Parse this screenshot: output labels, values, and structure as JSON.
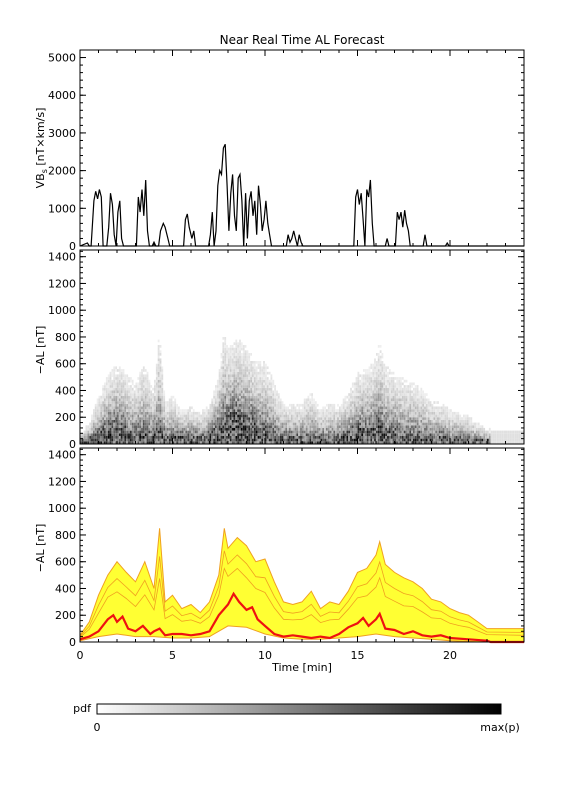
{
  "title": "Near Real Time AL Forecast",
  "chart_data": [
    {
      "type": "line",
      "panel": "vbs",
      "ylabel": "VB",
      "ylabel_sub": "s",
      "ylabel_unit": " [nT×km/s]",
      "xlim": [
        0,
        24
      ],
      "ylim": [
        0,
        5200
      ],
      "yticks": [
        0,
        1000,
        2000,
        3000,
        4000,
        5000
      ],
      "series": [
        {
          "color": "#000000",
          "points": [
            [
              0,
              0
            ],
            [
              0.4,
              80
            ],
            [
              0.5,
              0
            ],
            [
              0.6,
              0
            ],
            [
              0.75,
              1200
            ],
            [
              0.85,
              1450
            ],
            [
              0.95,
              1250
            ],
            [
              1.05,
              1500
            ],
            [
              1.15,
              1300
            ],
            [
              1.25,
              0
            ],
            [
              1.45,
              0
            ],
            [
              1.55,
              500
            ],
            [
              1.65,
              1400
            ],
            [
              1.75,
              1100
            ],
            [
              1.85,
              300
            ],
            [
              1.95,
              0
            ],
            [
              2.05,
              900
            ],
            [
              2.15,
              1200
            ],
            [
              2.25,
              200
            ],
            [
              2.35,
              0
            ],
            [
              3.05,
              0
            ],
            [
              3.15,
              1300
            ],
            [
              3.25,
              900
            ],
            [
              3.35,
              1500
            ],
            [
              3.45,
              800
            ],
            [
              3.55,
              1750
            ],
            [
              3.65,
              400
            ],
            [
              3.75,
              0
            ],
            [
              3.9,
              0
            ],
            [
              4.0,
              100
            ],
            [
              4.1,
              0
            ],
            [
              4.25,
              0
            ],
            [
              4.35,
              400
            ],
            [
              4.5,
              600
            ],
            [
              4.6,
              500
            ],
            [
              4.75,
              200
            ],
            [
              4.85,
              0
            ],
            [
              5.6,
              0
            ],
            [
              5.7,
              700
            ],
            [
              5.8,
              850
            ],
            [
              5.9,
              500
            ],
            [
              6.05,
              200
            ],
            [
              6.15,
              400
            ],
            [
              6.25,
              0
            ],
            [
              6.95,
              0
            ],
            [
              7.05,
              300
            ],
            [
              7.15,
              900
            ],
            [
              7.25,
              0
            ],
            [
              7.35,
              400
            ],
            [
              7.45,
              1600
            ],
            [
              7.55,
              2000
            ],
            [
              7.65,
              1900
            ],
            [
              7.75,
              2600
            ],
            [
              7.85,
              2700
            ],
            [
              7.95,
              1600
            ],
            [
              8.05,
              400
            ],
            [
              8.15,
              1400
            ],
            [
              8.25,
              1900
            ],
            [
              8.35,
              800
            ],
            [
              8.45,
              400
            ],
            [
              8.55,
              1800
            ],
            [
              8.65,
              1900
            ],
            [
              8.75,
              1200
            ],
            [
              8.85,
              0
            ],
            [
              8.95,
              1400
            ],
            [
              9.05,
              200
            ],
            [
              9.15,
              1200
            ],
            [
              9.25,
              1450
            ],
            [
              9.35,
              800
            ],
            [
              9.45,
              1200
            ],
            [
              9.55,
              300
            ],
            [
              9.65,
              1600
            ],
            [
              9.75,
              1100
            ],
            [
              9.85,
              400
            ],
            [
              9.95,
              700
            ],
            [
              10.05,
              1200
            ],
            [
              10.15,
              600
            ],
            [
              10.25,
              300
            ],
            [
              10.35,
              0
            ],
            [
              11.15,
              0
            ],
            [
              11.25,
              300
            ],
            [
              11.35,
              100
            ],
            [
              11.45,
              200
            ],
            [
              11.55,
              400
            ],
            [
              11.65,
              200
            ],
            [
              11.75,
              0
            ],
            [
              11.85,
              300
            ],
            [
              11.95,
              100
            ],
            [
              12.05,
              0
            ],
            [
              14.8,
              0
            ],
            [
              14.9,
              1300
            ],
            [
              15.0,
              1500
            ],
            [
              15.1,
              1100
            ],
            [
              15.2,
              1400
            ],
            [
              15.3,
              700
            ],
            [
              15.4,
              0
            ],
            [
              15.5,
              1500
            ],
            [
              15.6,
              1300
            ],
            [
              15.7,
              1750
            ],
            [
              15.8,
              600
            ],
            [
              15.9,
              0
            ],
            [
              16.5,
              0
            ],
            [
              16.6,
              200
            ],
            [
              16.7,
              0
            ],
            [
              17.05,
              0
            ],
            [
              17.15,
              900
            ],
            [
              17.25,
              700
            ],
            [
              17.35,
              900
            ],
            [
              17.45,
              500
            ],
            [
              17.55,
              950
            ],
            [
              17.65,
              600
            ],
            [
              17.75,
              400
            ],
            [
              17.85,
              0
            ],
            [
              18.55,
              0
            ],
            [
              18.65,
              300
            ],
            [
              18.75,
              0
            ],
            [
              19.75,
              0
            ],
            [
              19.85,
              80
            ],
            [
              19.95,
              0
            ],
            [
              20.15,
              0
            ],
            [
              24,
              0
            ]
          ]
        }
      ]
    },
    {
      "type": "heatmap",
      "panel": "pdf",
      "ylabel": "−AL [nT]",
      "xlim": [
        0,
        24
      ],
      "ylim": [
        0,
        1450
      ],
      "yticks": [
        0,
        200,
        400,
        600,
        800,
        1000,
        1200,
        1400
      ]
    },
    {
      "type": "area",
      "panel": "forecast",
      "xlabel": "Time [min]",
      "ylabel": "−AL [nT]",
      "xlim": [
        0,
        24
      ],
      "ylim": [
        0,
        1450
      ],
      "xticks": [
        0,
        5,
        10,
        15,
        20
      ],
      "yticks": [
        0,
        200,
        400,
        600,
        800,
        1000,
        1200,
        1400
      ],
      "colors": {
        "band": "#ffff33",
        "band_edge": "#f0a020",
        "median": "#ee1111"
      },
      "series": [
        {
          "name": "",
          "role": "upper",
          "points": [
            [
              0,
              50
            ],
            [
              0.5,
              150
            ],
            [
              1,
              350
            ],
            [
              1.5,
              500
            ],
            [
              2,
              600
            ],
            [
              2.5,
              520
            ],
            [
              3,
              450
            ],
            [
              3.5,
              600
            ],
            [
              4,
              400
            ],
            [
              4.3,
              850
            ],
            [
              4.6,
              300
            ],
            [
              5,
              350
            ],
            [
              5.5,
              250
            ],
            [
              6,
              280
            ],
            [
              6.5,
              220
            ],
            [
              7,
              300
            ],
            [
              7.5,
              500
            ],
            [
              7.8,
              850
            ],
            [
              8,
              700
            ],
            [
              8.5,
              780
            ],
            [
              9,
              720
            ],
            [
              9.5,
              600
            ],
            [
              10,
              620
            ],
            [
              10.5,
              450
            ],
            [
              11,
              300
            ],
            [
              11.5,
              280
            ],
            [
              12,
              300
            ],
            [
              12.5,
              380
            ],
            [
              13,
              250
            ],
            [
              13.5,
              300
            ],
            [
              14,
              280
            ],
            [
              14.5,
              380
            ],
            [
              15,
              520
            ],
            [
              15.5,
              550
            ],
            [
              16,
              650
            ],
            [
              16.2,
              750
            ],
            [
              16.5,
              580
            ],
            [
              17,
              520
            ],
            [
              17.5,
              480
            ],
            [
              18,
              450
            ],
            [
              18.5,
              400
            ],
            [
              19,
              320
            ],
            [
              19.5,
              300
            ],
            [
              20,
              250
            ],
            [
              20.5,
              220
            ],
            [
              21,
              200
            ],
            [
              21.5,
              150
            ],
            [
              22,
              100
            ],
            [
              24,
              100
            ]
          ]
        },
        {
          "name": "",
          "role": "lower",
          "points": [
            [
              0,
              10
            ],
            [
              1,
              40
            ],
            [
              2,
              60
            ],
            [
              3,
              40
            ],
            [
              4,
              40
            ],
            [
              5,
              30
            ],
            [
              6,
              30
            ],
            [
              7,
              40
            ],
            [
              8,
              120
            ],
            [
              9,
              110
            ],
            [
              10,
              60
            ],
            [
              11,
              30
            ],
            [
              12,
              20
            ],
            [
              13,
              20
            ],
            [
              14,
              30
            ],
            [
              15,
              40
            ],
            [
              16,
              60
            ],
            [
              17,
              40
            ],
            [
              18,
              30
            ],
            [
              19,
              20
            ],
            [
              20,
              10
            ],
            [
              22,
              0
            ],
            [
              24,
              0
            ]
          ]
        },
        {
          "name": "",
          "role": "median",
          "points": [
            [
              0,
              20
            ],
            [
              0.5,
              40
            ],
            [
              1,
              80
            ],
            [
              1.5,
              170
            ],
            [
              1.8,
              200
            ],
            [
              2,
              150
            ],
            [
              2.3,
              190
            ],
            [
              2.6,
              100
            ],
            [
              3,
              80
            ],
            [
              3.4,
              120
            ],
            [
              3.8,
              60
            ],
            [
              4,
              80
            ],
            [
              4.3,
              100
            ],
            [
              4.6,
              50
            ],
            [
              5,
              60
            ],
            [
              5.5,
              60
            ],
            [
              6,
              50
            ],
            [
              6.5,
              60
            ],
            [
              7,
              80
            ],
            [
              7.5,
              200
            ],
            [
              8,
              280
            ],
            [
              8.3,
              360
            ],
            [
              8.6,
              300
            ],
            [
              9,
              240
            ],
            [
              9.3,
              260
            ],
            [
              9.6,
              170
            ],
            [
              10,
              120
            ],
            [
              10.5,
              60
            ],
            [
              11,
              40
            ],
            [
              11.5,
              50
            ],
            [
              12,
              40
            ],
            [
              12.5,
              30
            ],
            [
              13,
              40
            ],
            [
              13.5,
              30
            ],
            [
              14,
              60
            ],
            [
              14.5,
              110
            ],
            [
              15,
              140
            ],
            [
              15.3,
              180
            ],
            [
              15.6,
              120
            ],
            [
              16,
              170
            ],
            [
              16.2,
              210
            ],
            [
              16.5,
              100
            ],
            [
              17,
              90
            ],
            [
              17.5,
              60
            ],
            [
              18,
              80
            ],
            [
              18.5,
              50
            ],
            [
              19,
              40
            ],
            [
              19.5,
              50
            ],
            [
              20,
              30
            ],
            [
              21,
              20
            ],
            [
              22,
              10
            ],
            [
              22.2,
              0
            ],
            [
              24,
              0
            ]
          ]
        }
      ]
    }
  ],
  "colorbar": {
    "label": "pdf",
    "min_label": "0",
    "max_label": "max(p)"
  }
}
